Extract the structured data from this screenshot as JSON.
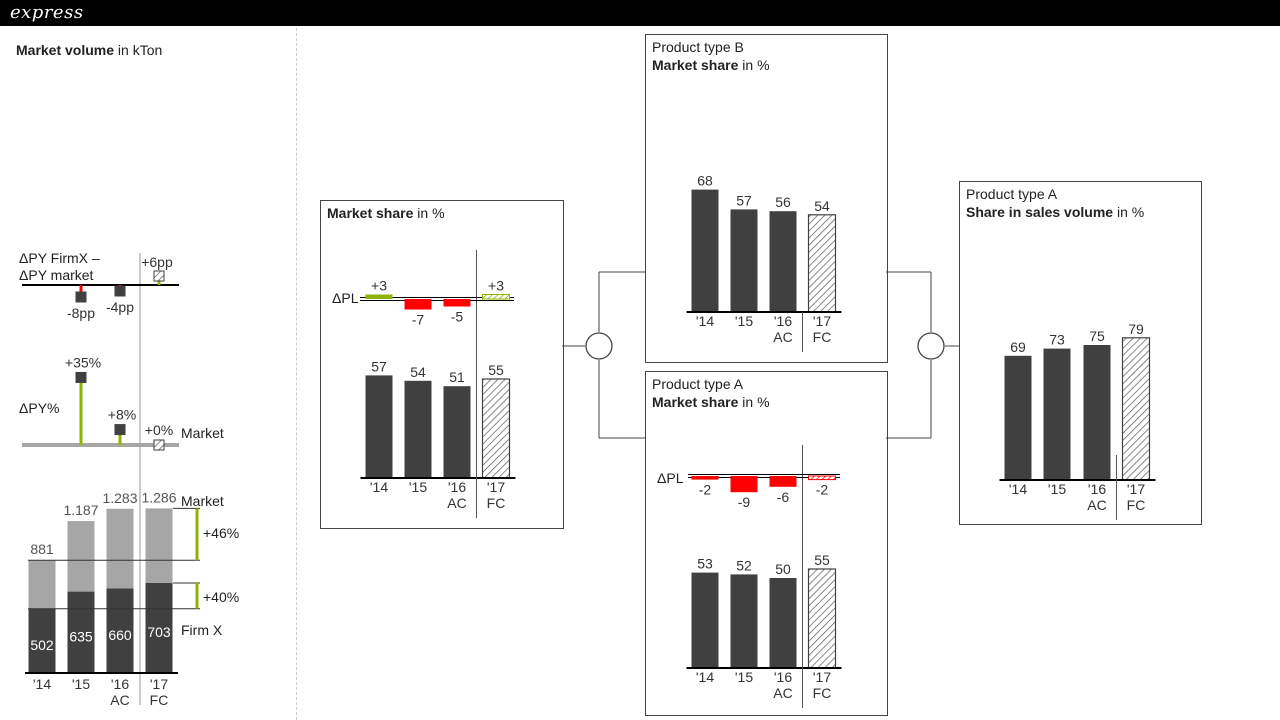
{
  "header": {
    "logo": "express"
  },
  "left_panel": {
    "title_bold": "Market volume",
    "title_unit": " in kTon",
    "delta_pp": {
      "label_line1": "ΔPY FirmX –",
      "label_line2": "ΔPY market"
    },
    "delta_pct": {
      "label": "ΔPY%",
      "market_label": "Market"
    },
    "stacked": {
      "market_label": "Market",
      "firm_label": "Firm X",
      "growth_market": "+46%",
      "growth_firm": "+40%"
    }
  },
  "panel_main": {
    "title_bold": "Market share",
    "title_unit": " in %",
    "delta_label": "ΔPL"
  },
  "panel_b": {
    "title_line1": "Product type B",
    "title_bold": "Market share",
    "title_unit": " in %"
  },
  "panel_a": {
    "title_line1": "Product type A",
    "title_bold": "Market share",
    "title_unit": " in %",
    "delta_label": "ΔPL"
  },
  "panel_sales": {
    "title_line1": "Product type A",
    "title_bold": "Share in sales volume",
    "title_unit": " in %"
  },
  "colors": {
    "actual": "#404040",
    "market": "#a6a6a6",
    "negative": "#ff0000",
    "positive": "#8cb400",
    "forecast_hatch": "#555555",
    "axis": "#000000"
  },
  "chart_data": [
    {
      "id": "left-delta-pp",
      "type": "bar",
      "categories": [
        "'14",
        "'15",
        "'16 AC",
        "'17 FC"
      ],
      "values": [
        null,
        -8,
        -4,
        6
      ],
      "labels": [
        "",
        "-8pp",
        "-4pp",
        "+6pp"
      ]
    },
    {
      "id": "left-delta-pct",
      "type": "bar",
      "categories": [
        "'14",
        "'15",
        "'16 AC",
        "'17 FC"
      ],
      "values": [
        null,
        35,
        8,
        0
      ],
      "labels": [
        "",
        "+35%",
        "+8%",
        "+0%"
      ]
    },
    {
      "id": "left-market-volume",
      "type": "bar",
      "categories": [
        "'14",
        "'15",
        "'16 AC",
        "'17 FC"
      ],
      "series": [
        {
          "name": "Firm X",
          "values": [
            502,
            635,
            660,
            703
          ],
          "labels": [
            "502",
            "635",
            "660",
            "703"
          ]
        },
        {
          "name": "Market",
          "values": [
            881,
            1187,
            1283,
            1286
          ],
          "labels": [
            "881",
            "1.187",
            "1.283",
            "1.286"
          ]
        }
      ]
    },
    {
      "id": "market-share",
      "type": "bar",
      "categories": [
        "'14",
        "'15",
        "'16 AC",
        "'17 FC"
      ],
      "values": [
        57,
        54,
        51,
        55
      ],
      "delta_pl": [
        3,
        -7,
        -5,
        3
      ],
      "delta_labels": [
        "+3",
        "-7",
        "-5",
        "+3"
      ]
    },
    {
      "id": "product-b-market-share",
      "type": "bar",
      "categories": [
        "'14",
        "'15",
        "'16 AC",
        "'17 FC"
      ],
      "values": [
        68,
        57,
        56,
        54
      ]
    },
    {
      "id": "product-a-market-share",
      "type": "bar",
      "categories": [
        "'14",
        "'15",
        "'16 AC",
        "'17 FC"
      ],
      "values": [
        53,
        52,
        50,
        55
      ],
      "delta_pl": [
        -2,
        -9,
        -6,
        -2
      ],
      "delta_labels": [
        "-2",
        "-9",
        "-6",
        "-2"
      ]
    },
    {
      "id": "product-a-sales-share",
      "type": "bar",
      "categories": [
        "'14",
        "'15",
        "'16 AC",
        "'17 FC"
      ],
      "values": [
        69,
        73,
        75,
        79
      ]
    }
  ]
}
